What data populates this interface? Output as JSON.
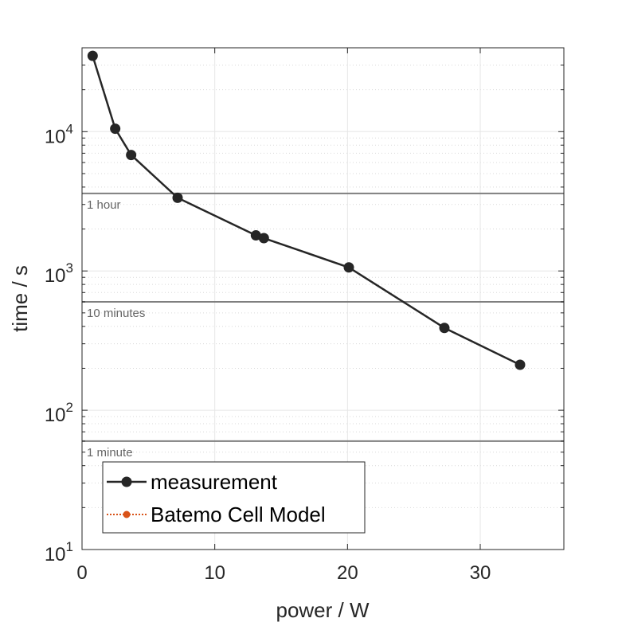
{
  "chart_data": {
    "type": "line",
    "xlabel": "power / W",
    "ylabel": "time / s",
    "xlim": [
      0,
      36.3
    ],
    "ylim": [
      10,
      40000
    ],
    "yscale": "log",
    "grid": true,
    "x_ticks": [
      0,
      10,
      20,
      30
    ],
    "y_ticks": [
      {
        "value": 10,
        "base": "10",
        "exp": "1"
      },
      {
        "value": 100,
        "base": "10",
        "exp": "2"
      },
      {
        "value": 1000,
        "base": "10",
        "exp": "3"
      },
      {
        "value": 10000,
        "base": "10",
        "exp": "4"
      }
    ],
    "reference_lines": [
      {
        "y": 3600,
        "label": "1 hour"
      },
      {
        "y": 600,
        "label": "10 minutes"
      },
      {
        "y": 60,
        "label": "1 minute"
      }
    ],
    "series": [
      {
        "name": "measurement",
        "color": "#262626",
        "style": "solid",
        "x": [
          0.8,
          2.5,
          3.7,
          7.2,
          13.1,
          13.7,
          20.1,
          27.3,
          33.0
        ],
        "y": [
          35000,
          10500,
          6800,
          3350,
          1800,
          1720,
          1060,
          390,
          212
        ]
      },
      {
        "name": "Batemo Cell Model",
        "color": "#d95319",
        "style": "dotted",
        "x": [],
        "y": []
      }
    ],
    "legend_position": "bottom-left"
  }
}
